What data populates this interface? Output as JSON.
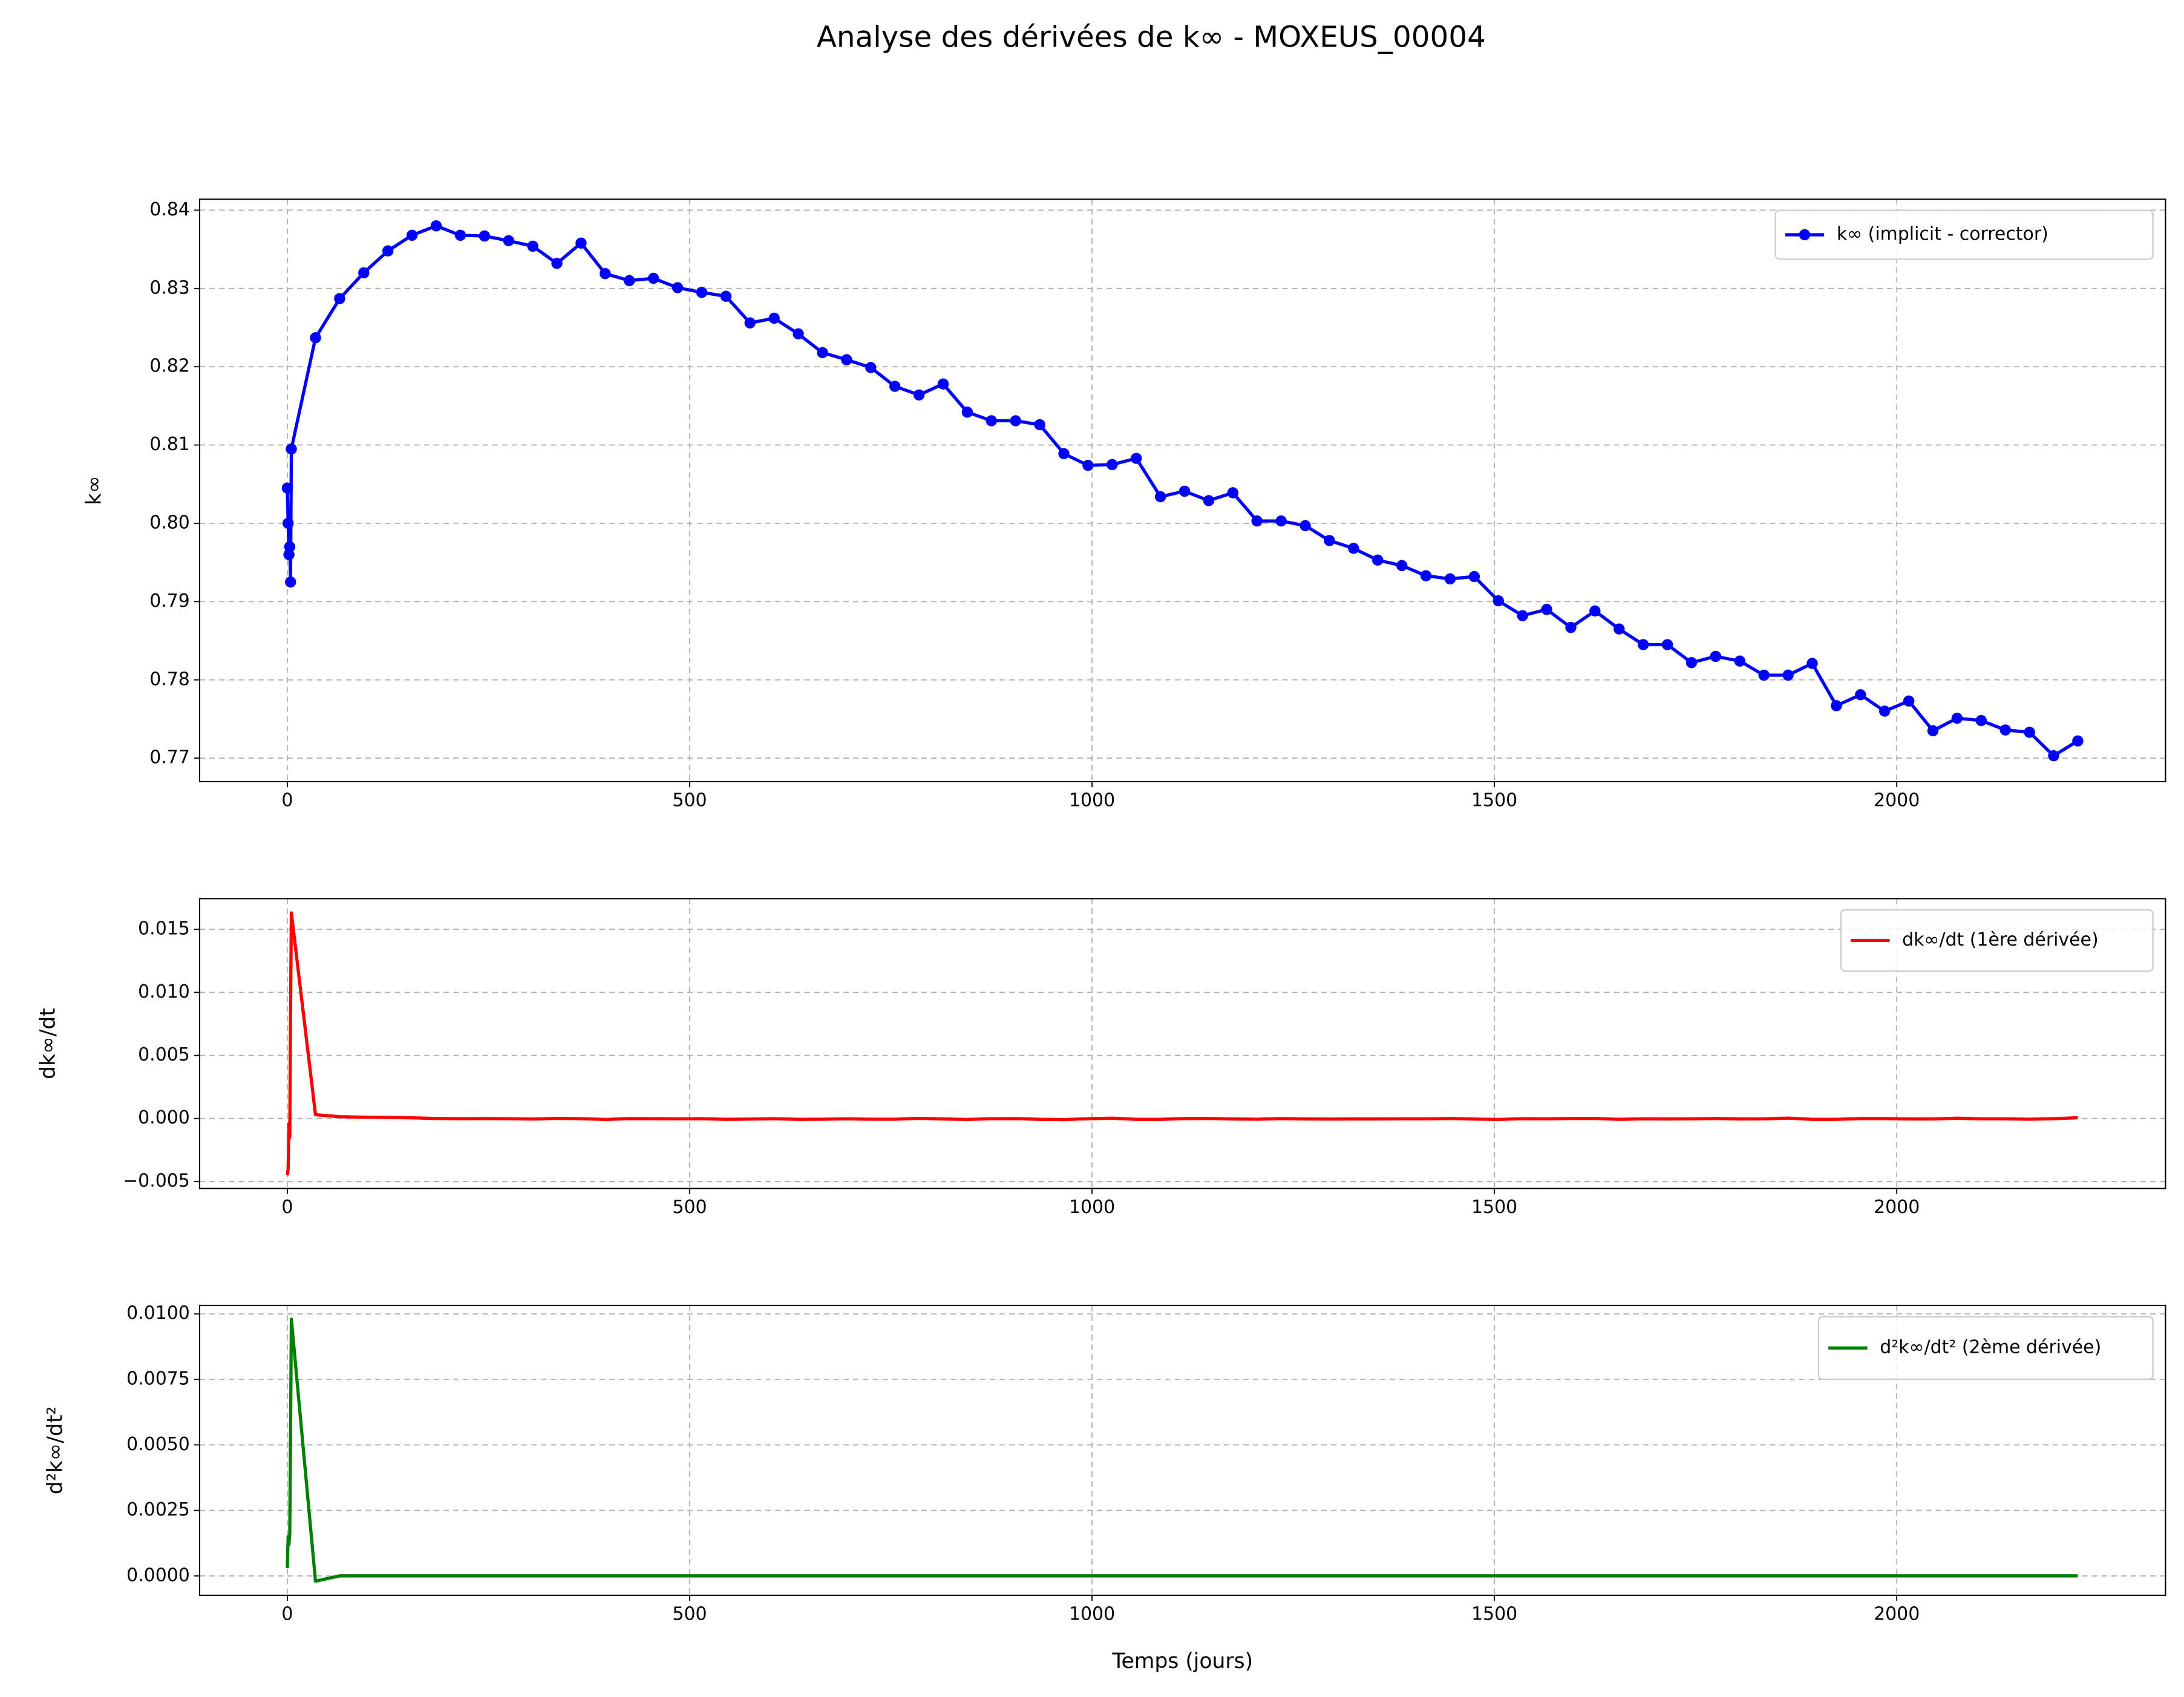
{
  "title": "Analyse des dérivées de k∞ - MOXEUS_00004",
  "chart_data": [
    {
      "type": "line",
      "marker": "o",
      "grid": true,
      "legend": "upper right",
      "ylabel": "k∞",
      "x": [
        0,
        1,
        2,
        3,
        4,
        5,
        35,
        65,
        95,
        125,
        155,
        185,
        215,
        245,
        275,
        305,
        335,
        365,
        395,
        425,
        455,
        485,
        515,
        545,
        575,
        605,
        635,
        665,
        695,
        725,
        755,
        785,
        815,
        845,
        875,
        905,
        935,
        965,
        995,
        1025,
        1055,
        1085,
        1115,
        1145,
        1175,
        1205,
        1235,
        1265,
        1295,
        1325,
        1355,
        1385,
        1415,
        1445,
        1475,
        1505,
        1535,
        1565,
        1595,
        1625,
        1655,
        1685,
        1715,
        1745,
        1775,
        1805,
        1835,
        1865,
        1895,
        1925,
        1955,
        1985,
        2015,
        2045,
        2075,
        2105,
        2135,
        2165,
        2195,
        2225
      ],
      "series": [
        {
          "name": "k∞ (implicit - corrector)",
          "color": "#0000ff",
          "values": [
            0.8045,
            0.8,
            0.796,
            0.797,
            0.7925,
            0.8095,
            0.8237,
            0.8287,
            0.832,
            0.8348,
            0.8368,
            0.838,
            0.8368,
            0.8367,
            0.8361,
            0.8354,
            0.8332,
            0.8358,
            0.8319,
            0.831,
            0.8313,
            0.8301,
            0.8295,
            0.829,
            0.8256,
            0.8262,
            0.8242,
            0.8218,
            0.8209,
            0.8199,
            0.8175,
            0.8164,
            0.8178,
            0.8142,
            0.8131,
            0.8131,
            0.8126,
            0.8089,
            0.8074,
            0.8075,
            0.8083,
            0.8034,
            0.8041,
            0.8029,
            0.8039,
            0.8003,
            0.8003,
            0.7997,
            0.7978,
            0.7968,
            0.7953,
            0.7946,
            0.7933,
            0.7929,
            0.7932,
            0.7901,
            0.7882,
            0.789,
            0.7867,
            0.7888,
            0.7865,
            0.7845,
            0.7845,
            0.7822,
            0.783,
            0.7824,
            0.7806,
            0.7806,
            0.7821,
            0.7767,
            0.7781,
            0.776,
            0.7773,
            0.7735,
            0.7751,
            0.7748,
            0.7736,
            0.7733,
            0.7703,
            0.7722
          ]
        }
      ],
      "xlim": [
        -109,
        2334
      ],
      "xticks": [
        0,
        500,
        1000,
        1500,
        2000
      ],
      "ylim": [
        0.767,
        0.8414
      ],
      "yticks": [
        0.77,
        0.78,
        0.79,
        {
          "value": 0.8,
          "label": "0.80"
        },
        0.81,
        0.82,
        0.83,
        0.84
      ]
    },
    {
      "type": "line",
      "grid": true,
      "legend": "upper right",
      "ylabel": "dk∞/dt",
      "x": [
        0,
        1,
        2,
        3,
        4,
        5,
        35,
        65,
        95,
        125,
        155,
        185,
        215,
        245,
        275,
        305,
        335,
        365,
        395,
        425,
        455,
        485,
        515,
        545,
        575,
        605,
        635,
        665,
        695,
        725,
        755,
        785,
        815,
        845,
        875,
        905,
        935,
        965,
        995,
        1025,
        1055,
        1085,
        1115,
        1145,
        1175,
        1205,
        1235,
        1265,
        1295,
        1325,
        1355,
        1385,
        1415,
        1445,
        1475,
        1505,
        1535,
        1565,
        1595,
        1625,
        1655,
        1685,
        1715,
        1745,
        1775,
        1805,
        1835,
        1865,
        1895,
        1925,
        1955,
        1985,
        2015,
        2045,
        2075,
        2105,
        2135,
        2165,
        2195,
        2225
      ],
      "series": [
        {
          "name": "dk∞/dt (1ère dérivée)",
          "color": "#ff0000",
          "values": [
            -0.0045,
            -0.004,
            -0.0004,
            -0.0015,
            0.0085,
            0.0163,
            0.0003,
            0.00014,
            0.0001,
            8e-05,
            5e-05,
            0,
            -2e-05,
            -1e-05,
            -2e-05,
            -5e-05,
            1e-05,
            -2e-05,
            -8e-05,
            -1e-05,
            -2e-05,
            -3e-05,
            -2e-05,
            -7e-05,
            -5e-05,
            -2e-05,
            -7e-05,
            -6e-05,
            -3e-05,
            -6e-05,
            -6e-05,
            1e-05,
            -4e-05,
            -8e-05,
            -2e-05,
            -1e-05,
            -7e-05,
            -9e-05,
            -2e-05,
            2e-05,
            -7e-05,
            -7e-05,
            -1e-05,
            0,
            -4e-05,
            -6e-05,
            -1e-05,
            -4e-05,
            -5e-05,
            -4e-05,
            -4e-05,
            -3e-05,
            -3e-05,
            0,
            -5e-05,
            -8e-05,
            -2e-05,
            -3e-05,
            0,
            0,
            -7e-05,
            -3e-05,
            -4e-05,
            -3e-05,
            0,
            -4e-05,
            -3e-05,
            3e-05,
            -7e-05,
            -7e-05,
            -1e-05,
            -1e-05,
            -4e-05,
            -4e-05,
            2e-05,
            -3e-05,
            -3e-05,
            -6e-05,
            -2e-05,
            6e-05
          ]
        }
      ],
      "xlim": [
        -109,
        2334
      ],
      "xticks": [
        0,
        500,
        1000,
        1500,
        2000
      ],
      "ylim": [
        -0.00555,
        0.01743
      ],
      "yticks": [
        {
          "value": -0.005,
          "label": "−0.005"
        },
        {
          "value": 0,
          "label": "0.000"
        },
        0.005,
        {
          "value": 0.01,
          "label": "0.010"
        },
        0.015
      ]
    },
    {
      "type": "line",
      "grid": true,
      "legend": "upper right",
      "ylabel": "d²k∞/dt²",
      "xlabel": "Temps (jours)",
      "x": [
        0,
        1,
        2,
        3,
        4,
        5,
        35,
        65,
        95,
        125,
        155,
        185,
        215,
        245,
        275,
        305,
        335,
        365,
        395,
        425,
        455,
        485,
        515,
        545,
        575,
        605,
        635,
        665,
        695,
        725,
        755,
        785,
        815,
        845,
        875,
        905,
        935,
        965,
        995,
        1025,
        1055,
        1085,
        1115,
        1145,
        1175,
        1205,
        1235,
        1265,
        1295,
        1325,
        1355,
        1385,
        1415,
        1445,
        1475,
        1505,
        1535,
        1565,
        1595,
        1625,
        1655,
        1685,
        1715,
        1745,
        1775,
        1805,
        1835,
        1865,
        1895,
        1925,
        1955,
        1985,
        2015,
        2045,
        2075,
        2105,
        2135,
        2165,
        2195,
        2225
      ],
      "series": [
        {
          "name": "d²k∞/dt² (2ème dérivée)",
          "color": "#008000",
          "values": [
            0.0003,
            0.0015,
            0.0012,
            0.0016,
            0.0055,
            0.0098,
            -0.0002,
            0,
            0,
            0,
            0,
            0,
            0,
            0,
            0,
            0,
            0,
            0,
            0,
            0,
            0,
            0,
            0,
            0,
            0,
            0,
            0,
            0,
            0,
            0,
            0,
            0,
            0,
            0,
            0,
            0,
            0,
            0,
            0,
            0,
            0,
            0,
            0,
            0,
            0,
            0,
            0,
            0,
            0,
            0,
            0,
            0,
            0,
            0,
            0,
            0,
            0,
            0,
            0,
            0,
            0,
            0,
            0,
            0,
            0,
            0,
            0,
            0,
            0,
            0,
            0,
            0,
            0,
            0,
            0,
            0,
            0,
            0,
            0,
            0
          ]
        }
      ],
      "xlim": [
        -109,
        2334
      ],
      "xticks": [
        0,
        500,
        1000,
        1500,
        2000
      ],
      "ylim": [
        -0.00074,
        0.01032
      ],
      "yticks": [
        {
          "value": 0,
          "label": "0.0000"
        },
        {
          "value": 0.0025,
          "label": "0.0025"
        },
        {
          "value": 0.005,
          "label": "0.0050"
        },
        {
          "value": 0.0075,
          "label": "0.0075"
        },
        {
          "value": 0.01,
          "label": "0.0100"
        }
      ]
    }
  ]
}
